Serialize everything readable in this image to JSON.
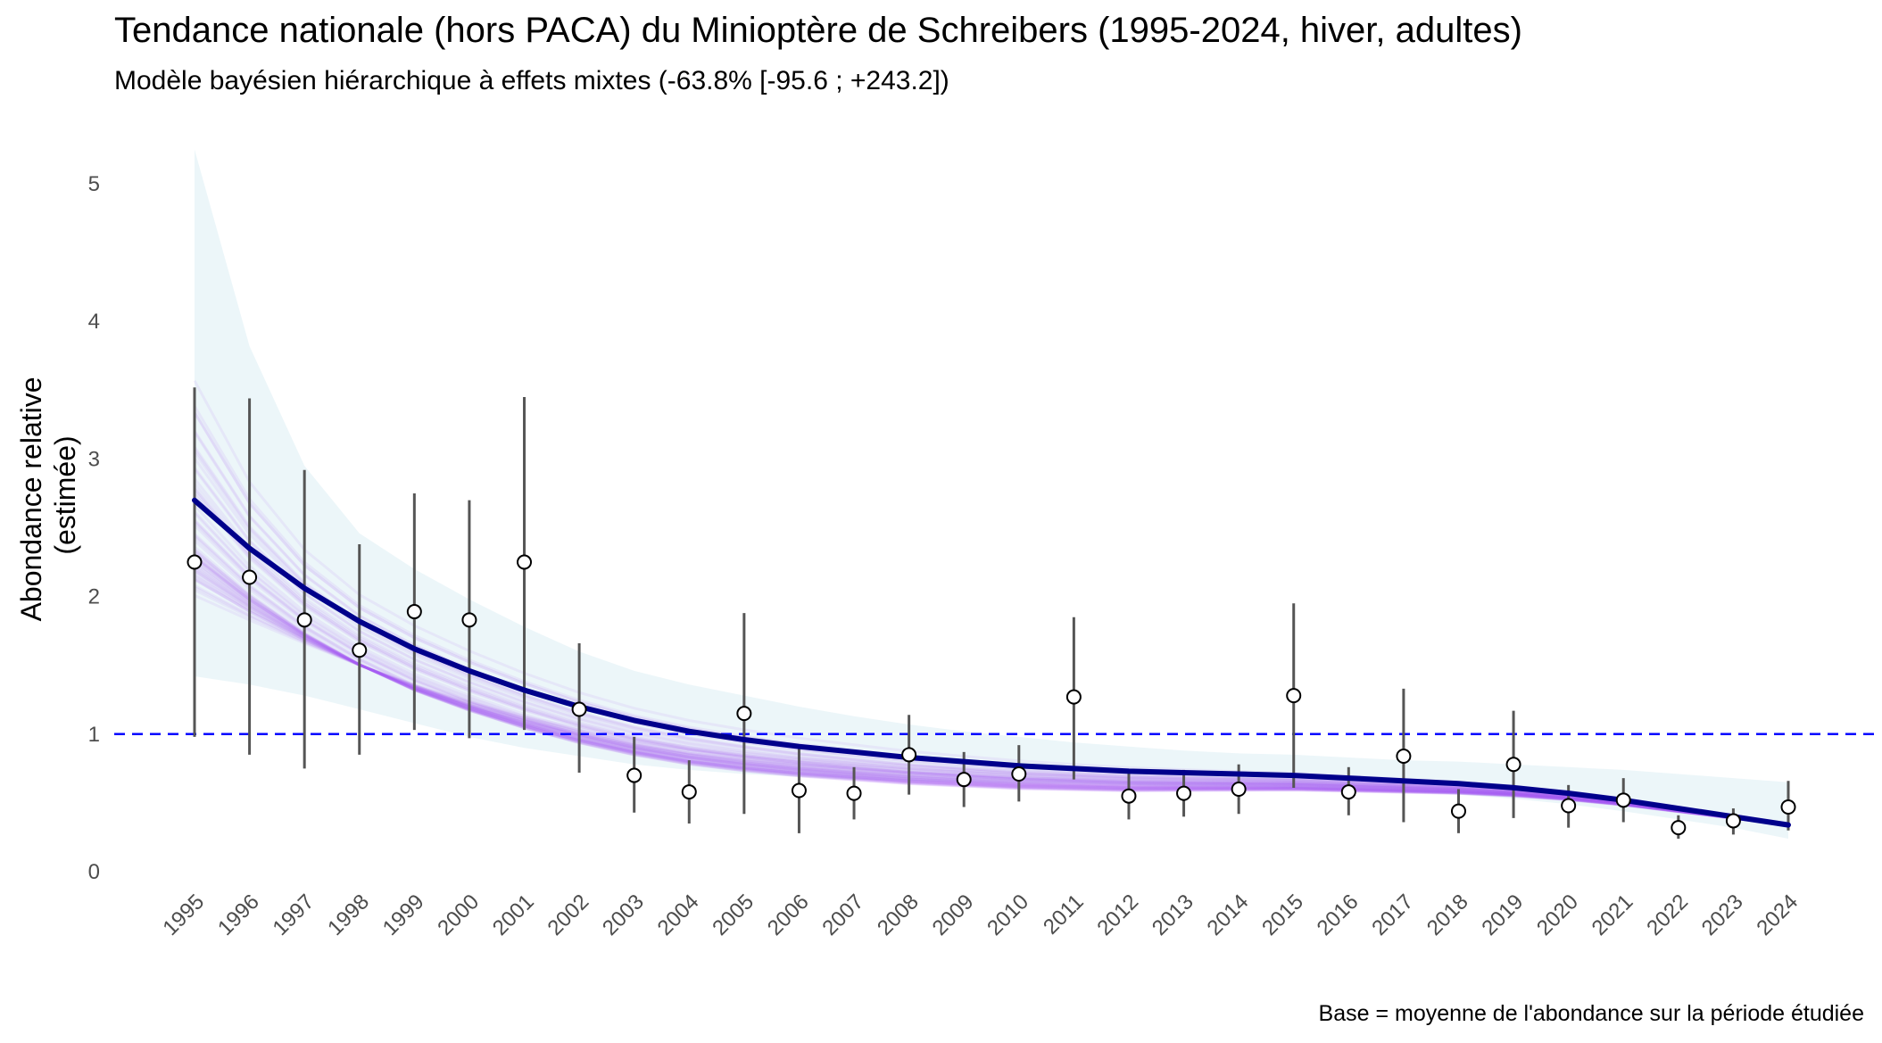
{
  "chart_data": {
    "type": "line",
    "title": "Tendance nationale (hors PACA) du Minioptère de Schreibers (1995-2024, hiver, adultes)",
    "subtitle": "Modèle bayésien hiérarchique à effets mixtes (-63.8% [-95.6 ; +243.2])",
    "caption": "Base = moyenne de l'abondance sur la période étudiée",
    "xlabel": "",
    "ylabel_lines": [
      "Abondance relative",
      "(estimée)"
    ],
    "ylim": [
      0,
      5.2
    ],
    "yticks": [
      0,
      1,
      2,
      3,
      4,
      5
    ],
    "reference_line": 1,
    "grid": false,
    "colors": {
      "trend": "#00008b",
      "reference": "#0000ff",
      "ribbon": "#cfe9f0",
      "posterior_draws": "#a855f7",
      "errorbar": "#555555",
      "point_fill": "#ffffff",
      "point_stroke": "#000000"
    },
    "x": [
      1995,
      1996,
      1997,
      1998,
      1999,
      2000,
      2001,
      2002,
      2003,
      2004,
      2005,
      2006,
      2007,
      2008,
      2009,
      2010,
      2011,
      2012,
      2013,
      2014,
      2015,
      2016,
      2017,
      2018,
      2019,
      2020,
      2021,
      2022,
      2023,
      2024
    ],
    "series": [
      {
        "kind": "trend",
        "values": [
          2.7,
          2.35,
          2.06,
          1.82,
          1.62,
          1.46,
          1.32,
          1.2,
          1.1,
          1.02,
          0.96,
          0.91,
          0.87,
          0.83,
          0.8,
          0.77,
          0.75,
          0.73,
          0.72,
          0.71,
          0.7,
          0.68,
          0.66,
          0.64,
          0.61,
          0.57,
          0.52,
          0.46,
          0.4,
          0.34
        ]
      },
      {
        "kind": "credible_interval_ribbon",
        "lower": [
          1.42,
          1.36,
          1.28,
          1.18,
          1.08,
          0.98,
          0.9,
          0.84,
          0.78,
          0.74,
          0.71,
          0.69,
          0.67,
          0.66,
          0.65,
          0.64,
          0.64,
          0.63,
          0.62,
          0.62,
          0.61,
          0.6,
          0.58,
          0.56,
          0.53,
          0.49,
          0.44,
          0.38,
          0.32,
          0.24
        ],
        "upper": [
          5.25,
          3.82,
          2.95,
          2.46,
          2.2,
          1.98,
          1.78,
          1.6,
          1.46,
          1.36,
          1.28,
          1.2,
          1.13,
          1.07,
          1.02,
          0.98,
          0.94,
          0.91,
          0.88,
          0.86,
          0.85,
          0.83,
          0.81,
          0.8,
          0.78,
          0.76,
          0.74,
          0.71,
          0.68,
          0.65
        ]
      },
      {
        "kind": "observed",
        "values": [
          2.25,
          2.14,
          1.83,
          1.61,
          1.89,
          1.83,
          2.25,
          1.18,
          0.7,
          0.58,
          1.15,
          0.59,
          0.57,
          0.85,
          0.67,
          0.71,
          1.27,
          0.55,
          0.57,
          0.6,
          1.28,
          0.58,
          0.84,
          0.44,
          0.78,
          0.48,
          0.52,
          0.32,
          0.37,
          0.47
        ],
        "lower": [
          0.98,
          0.85,
          0.75,
          0.85,
          1.03,
          0.97,
          1.03,
          0.72,
          0.43,
          0.35,
          0.42,
          0.28,
          0.38,
          0.56,
          0.47,
          0.51,
          0.67,
          0.38,
          0.4,
          0.42,
          0.61,
          0.41,
          0.36,
          0.28,
          0.39,
          0.32,
          0.36,
          0.24,
          0.27,
          0.3
        ],
        "upper": [
          3.52,
          3.44,
          2.92,
          2.38,
          2.75,
          2.7,
          3.45,
          1.66,
          0.98,
          0.81,
          1.88,
          0.9,
          0.76,
          1.14,
          0.87,
          0.92,
          1.85,
          0.72,
          0.74,
          0.78,
          1.95,
          0.76,
          1.33,
          0.6,
          1.17,
          0.63,
          0.68,
          0.41,
          0.46,
          0.66
        ]
      }
    ]
  }
}
